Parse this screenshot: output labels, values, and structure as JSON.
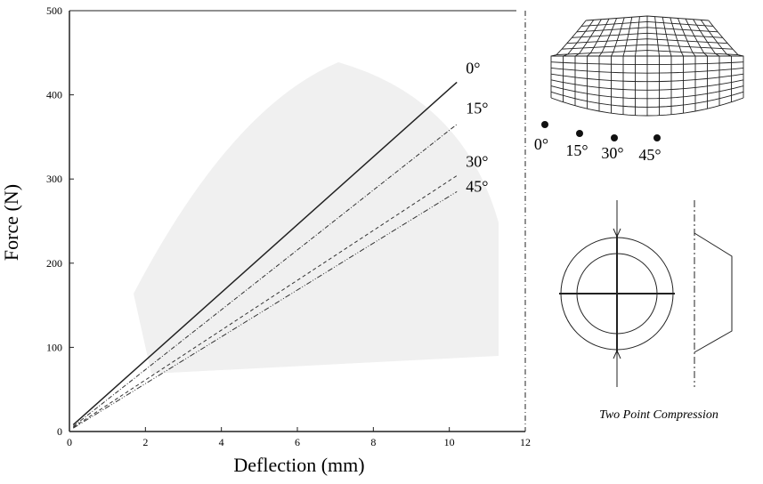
{
  "chart_data": {
    "type": "line",
    "x_label": "Deflection (mm)",
    "y_label": "Force (N)",
    "x": [
      0.1,
      10.2
    ],
    "series": [
      {
        "name": "0°",
        "color": "#222222",
        "dash": "none",
        "values": [
          8,
          415
        ]
      },
      {
        "name": "15°",
        "color": "#333333",
        "dash": "5 2 1 2",
        "values": [
          6,
          365
        ]
      },
      {
        "name": "30°",
        "color": "#333333",
        "dash": "4 3",
        "values": [
          5,
          304
        ]
      },
      {
        "name": "45°",
        "color": "#333333",
        "dash": "6 2 1 2 1 2",
        "values": [
          4,
          285
        ]
      }
    ],
    "xlim": [
      0,
      12
    ],
    "xticks": [
      0,
      2,
      4,
      6,
      8,
      10,
      12
    ],
    "ylim": [
      0,
      500
    ],
    "yticks": [
      0,
      100,
      200,
      300,
      400,
      500
    ]
  },
  "figure": {
    "mesh_labels": [
      "0°",
      "15°",
      "30°",
      "45°"
    ],
    "caption": "Two Point Compression"
  }
}
